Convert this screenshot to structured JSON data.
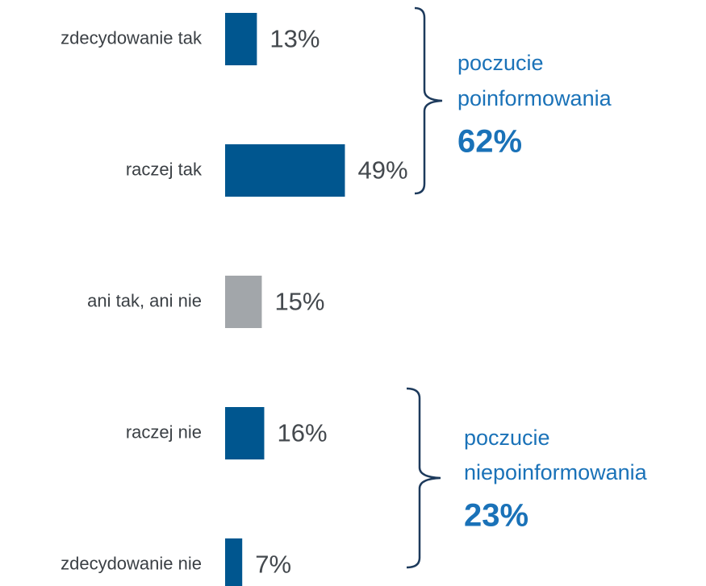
{
  "chart_data": {
    "type": "barh",
    "categories": [
      "zdecydowanie tak",
      "raczej tak",
      "ani tak, ani nie",
      "raczej nie",
      "zdecydowanie nie"
    ],
    "values": [
      13,
      49,
      15,
      16,
      7
    ],
    "value_labels": [
      "13%",
      "49%",
      "15%",
      "16%",
      "7%"
    ],
    "colors": [
      "#00568f",
      "#00568f",
      "#a2a6aa",
      "#00568f",
      "#00568f"
    ],
    "xlim": [
      0,
      100
    ],
    "annotations": [
      {
        "lines": [
          "poczucie",
          "poinformowania"
        ],
        "value": 62,
        "value_label": "62%"
      },
      {
        "lines": [
          "poczucie",
          "niepoinformowania"
        ],
        "value": 23,
        "value_label": "23%"
      }
    ]
  }
}
